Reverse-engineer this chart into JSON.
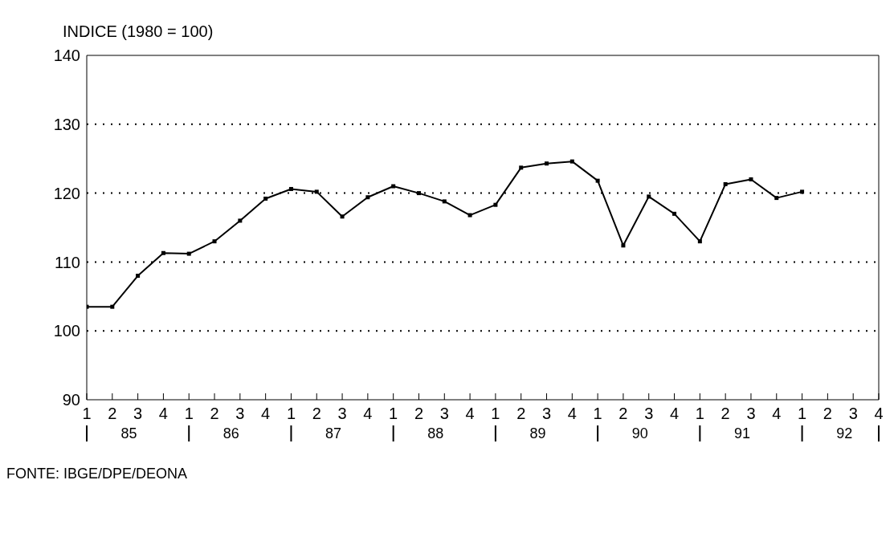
{
  "chart_data": {
    "type": "line",
    "ylabel": "INDICE (1980 = 100)",
    "categories": [
      "1",
      "2",
      "3",
      "4",
      "1",
      "2",
      "3",
      "4",
      "1",
      "2",
      "3",
      "4",
      "1",
      "2",
      "3",
      "4",
      "1",
      "2",
      "3",
      "4",
      "1",
      "2",
      "3",
      "4",
      "1",
      "2",
      "3",
      "4",
      "1",
      "2",
      "3",
      "4"
    ],
    "series": [
      {
        "color": "#000000",
        "values": [
          103.5,
          103.5,
          108,
          111.3,
          111.2,
          113,
          116,
          119.2,
          120.6,
          120.2,
          116.6,
          119.4,
          121,
          120,
          118.8,
          116.8,
          118.3,
          123.7,
          124.3,
          124.6,
          121.8,
          112.4,
          119.5,
          117,
          113,
          121.3,
          122,
          119.3,
          120.2,
          null,
          null,
          null
        ]
      }
    ],
    "ylim": [
      90,
      140
    ],
    "yticks": [
      90,
      100,
      110,
      120,
      130,
      140
    ],
    "grid": "y",
    "marker": "square",
    "line_style": "solid",
    "annotations": [
      "85",
      "86",
      "87",
      "88",
      "89",
      "90",
      "91",
      "92",
      "FONTE: IBGE/DPE/DEONA"
    ]
  }
}
